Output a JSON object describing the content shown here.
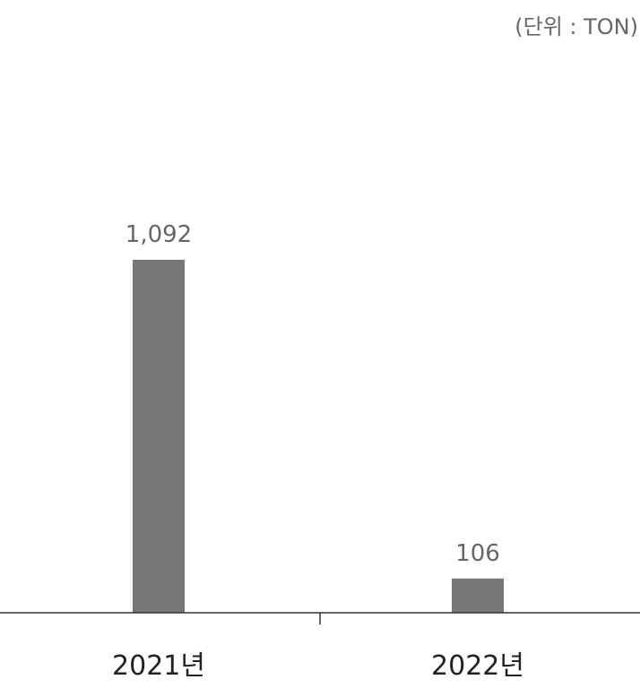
{
  "unit_label": "(단위 : TON)",
  "colors": {
    "bar": "#777777",
    "axis": "#333333",
    "value_label": "#666666",
    "category_label": "#222222"
  },
  "chart_data": {
    "type": "bar",
    "categories": [
      "2021년",
      "2022년"
    ],
    "values": [
      1092,
      106
    ],
    "value_labels": [
      "1,092",
      "106"
    ],
    "ylim": [
      0,
      1100
    ],
    "grid": false,
    "legend": "none"
  }
}
